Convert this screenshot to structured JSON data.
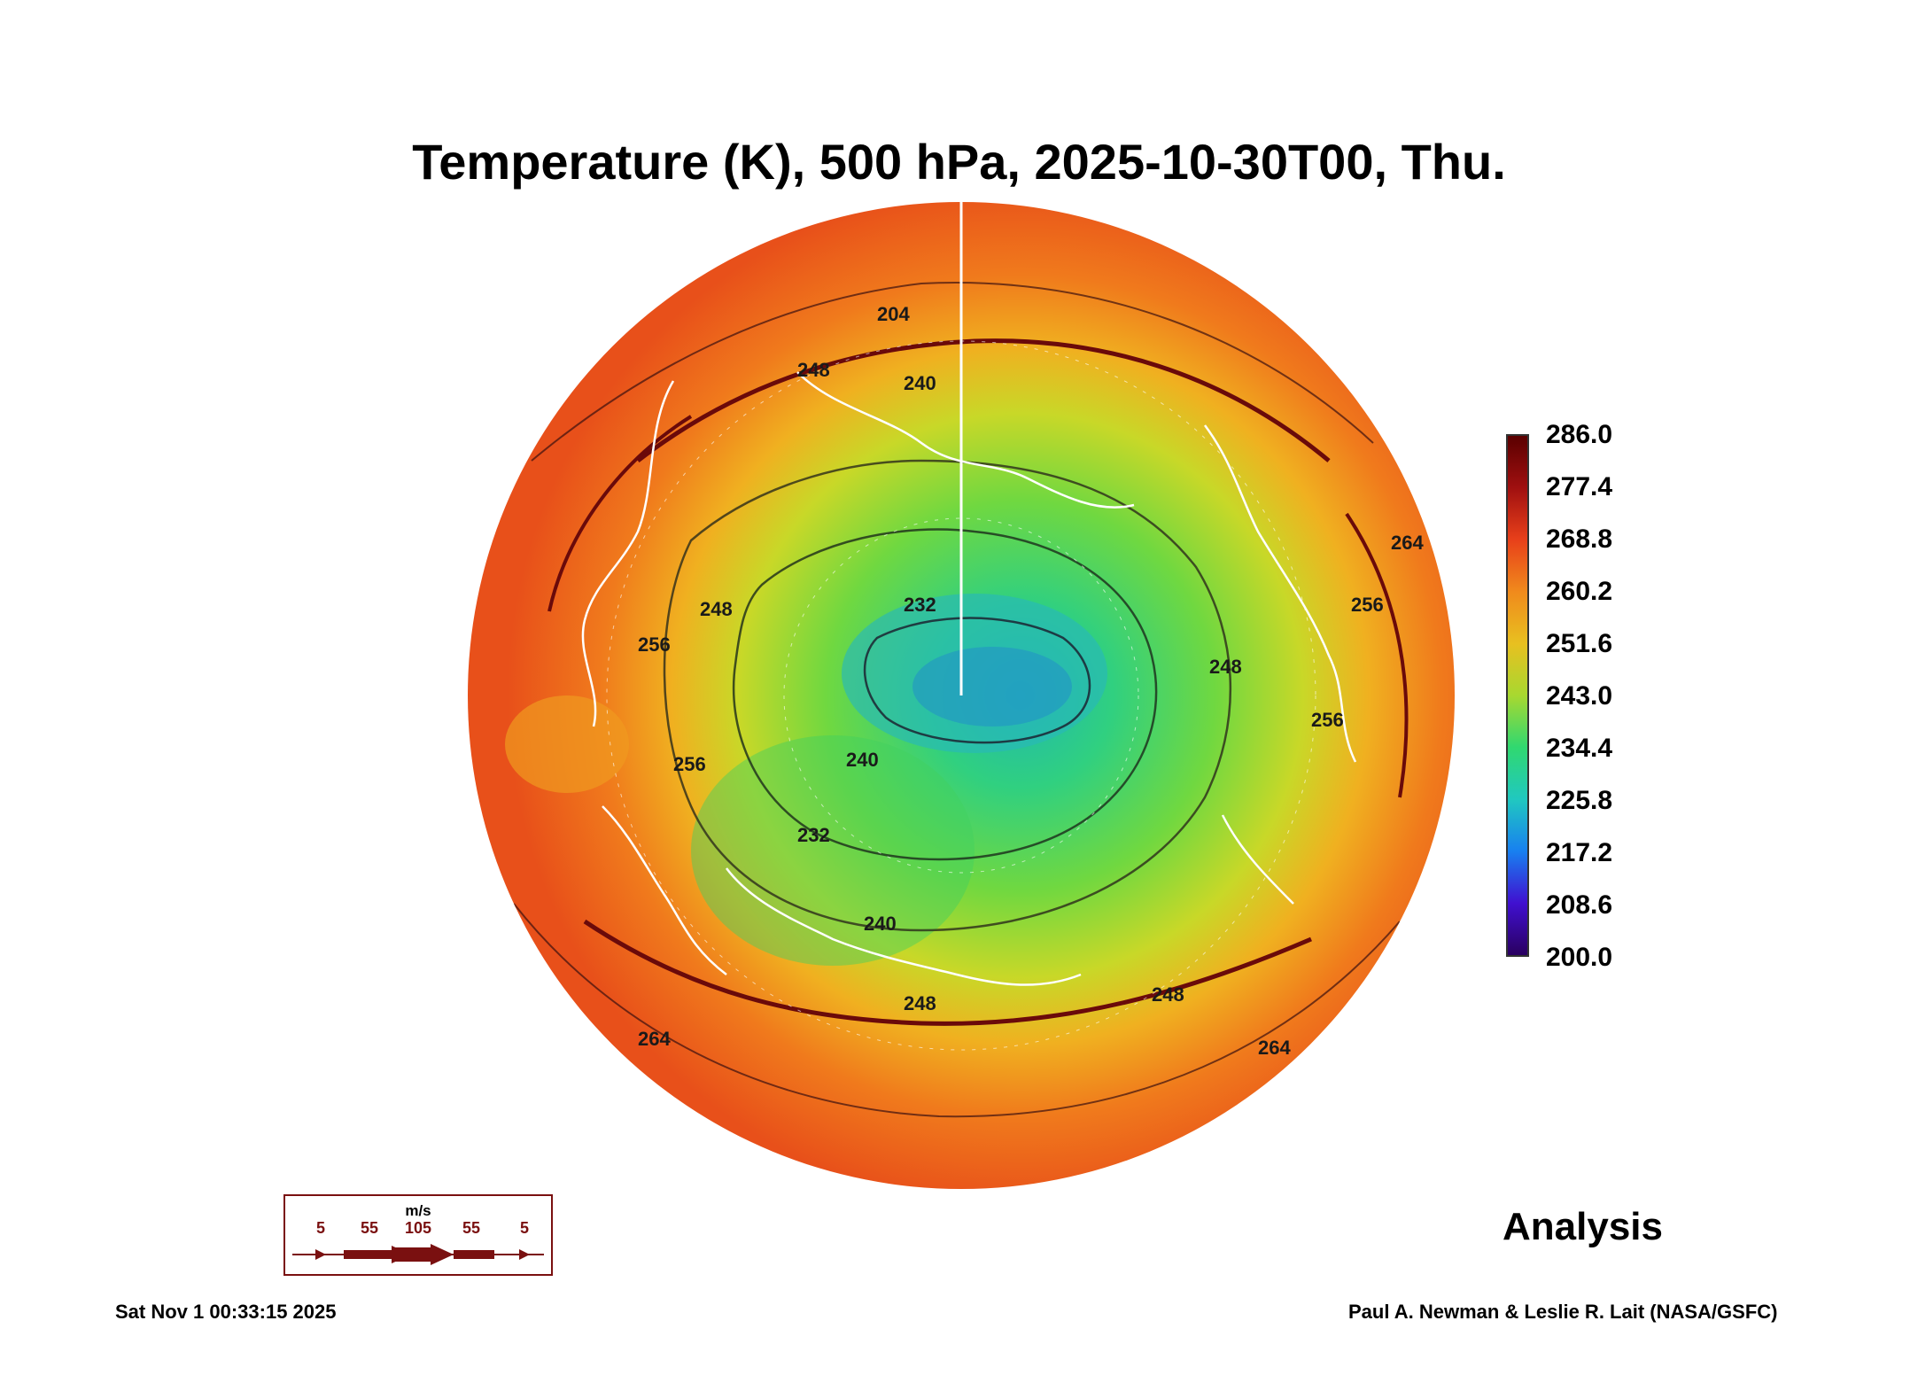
{
  "title": "Temperature (K), 500 hPa, 2025-10-30T00, Thu.",
  "colorbar": {
    "labels": [
      "286.0",
      "277.4",
      "268.8",
      "260.2",
      "251.6",
      "243.0",
      "234.4",
      "225.8",
      "217.2",
      "208.6",
      "200.0"
    ],
    "colors": [
      "#5a0000",
      "#a01010",
      "#e8401a",
      "#f08a1c",
      "#e8c020",
      "#a8d830",
      "#30d870",
      "#20c8c0",
      "#1880f0",
      "#4010d0",
      "#2a0060"
    ]
  },
  "contour_labels": [
    "204",
    "248",
    "240",
    "232",
    "248",
    "256",
    "256",
    "248",
    "240",
    "240",
    "248",
    "256",
    "256",
    "264",
    "264",
    "264",
    "248",
    "232"
  ],
  "wind_legend": {
    "unit": "m/s",
    "speeds": [
      "5",
      "55",
      "105",
      "55",
      "5"
    ],
    "color": "#7a1010"
  },
  "analysis_label": "Analysis",
  "footer": {
    "timestamp": "Sat Nov  1 00:33:15 2025",
    "credit": "Paul A. Newman & Leslie R. Lait (NASA/GSFC)"
  }
}
